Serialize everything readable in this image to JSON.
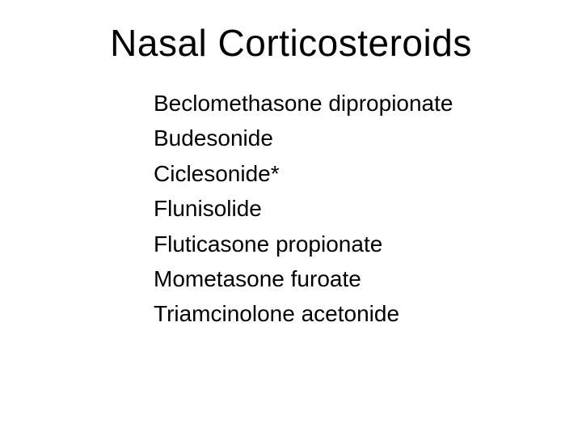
{
  "background_color": "#ffffff",
  "text_color": "#000000",
  "title": "Nasal Corticosteroids",
  "title_fontsize": 46,
  "item_fontsize": 28,
  "items": [
    "Beclomethasone dipropionate",
    "Budesonide",
    "Ciclesonide*",
    "Flunisolide",
    "Fluticasone propionate",
    "Mometasone furoate",
    "Triamcinolone acetonide"
  ]
}
